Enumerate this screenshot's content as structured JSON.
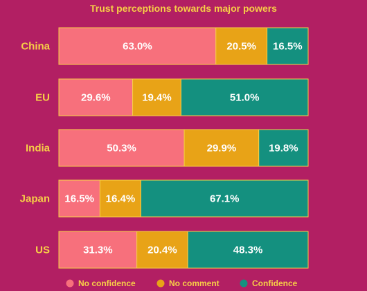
{
  "chart_data": {
    "type": "bar",
    "orientation": "horizontal",
    "stacked": true,
    "normalized": true,
    "title": "Trust perceptions towards major powers",
    "categories": [
      "China",
      "EU",
      "India",
      "Japan",
      "US"
    ],
    "series": [
      {
        "name": "No confidence",
        "color": "#F7707C",
        "values": [
          63.0,
          29.6,
          50.3,
          16.5,
          31.3
        ]
      },
      {
        "name": "No comment",
        "color": "#E8A317",
        "values": [
          20.5,
          19.4,
          29.9,
          16.4,
          20.4
        ]
      },
      {
        "name": "Confidence",
        "color": "#14907F",
        "values": [
          16.5,
          51.0,
          19.8,
          67.1,
          48.3
        ]
      }
    ],
    "value_format": "percent_one_decimal",
    "xlim": [
      0,
      100
    ],
    "grid": false,
    "legend_position": "bottom",
    "colors": {
      "background": "#B21F63",
      "text": "#F7CF47",
      "segment_stroke": "#F7CF47"
    }
  }
}
